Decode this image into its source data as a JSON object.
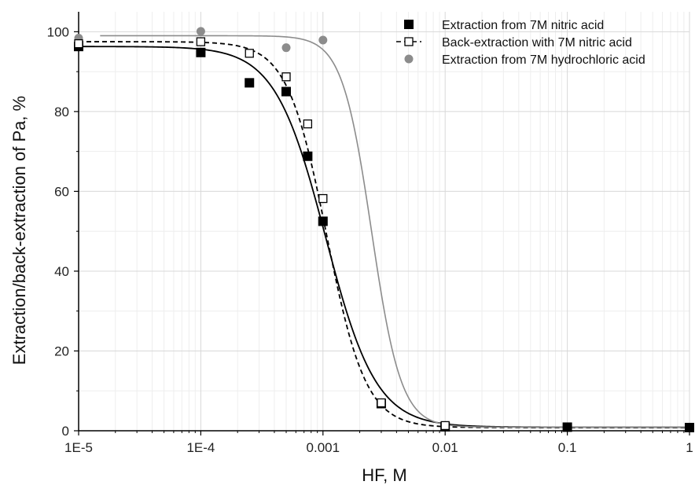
{
  "chart_data": {
    "type": "scatter",
    "xlabel": "HF, M",
    "ylabel": "Extraction/back-extraction of Pa, %",
    "x_scale": "log",
    "xlim": [
      1e-05,
      1
    ],
    "ylim": [
      0,
      105
    ],
    "x_ticks": [
      {
        "value": 1e-05,
        "label": "1E-5"
      },
      {
        "value": 0.0001,
        "label": "1E-4"
      },
      {
        "value": 0.001,
        "label": "0.001"
      },
      {
        "value": 0.01,
        "label": "0.01"
      },
      {
        "value": 0.1,
        "label": "0.1"
      },
      {
        "value": 1,
        "label": "1"
      }
    ],
    "y_ticks": [
      {
        "value": 0,
        "label": "0"
      },
      {
        "value": 20,
        "label": "20"
      },
      {
        "value": 40,
        "label": "40"
      },
      {
        "value": 60,
        "label": "60"
      },
      {
        "value": 80,
        "label": "80"
      },
      {
        "value": 100,
        "label": "100"
      }
    ],
    "grid": true,
    "legend_position": "top-right",
    "series": [
      {
        "name": "Extraction from 7M nitric acid",
        "marker": "filled-square",
        "line": "solid",
        "color": "#000000",
        "points": [
          {
            "x": 1e-05,
            "y": 96.3
          },
          {
            "x": 0.0001,
            "y": 94.8
          },
          {
            "x": 0.00025,
            "y": 87.2
          },
          {
            "x": 0.0005,
            "y": 85.0
          },
          {
            "x": 0.00075,
            "y": 68.8
          },
          {
            "x": 0.001,
            "y": 52.5
          },
          {
            "x": 0.003,
            "y": 6.8
          },
          {
            "x": 0.01,
            "y": 1.0
          },
          {
            "x": 0.1,
            "y": 0.9
          },
          {
            "x": 1,
            "y": 0.8
          }
        ]
      },
      {
        "name": "Back-extraction with 7M nitric acid",
        "marker": "open-square",
        "line": "dashed",
        "color": "#000000",
        "points": [
          {
            "x": 1e-05,
            "y": 97.0
          },
          {
            "x": 0.0001,
            "y": 97.5
          },
          {
            "x": 0.00025,
            "y": 94.6
          },
          {
            "x": 0.0005,
            "y": 88.7
          },
          {
            "x": 0.00075,
            "y": 76.9
          },
          {
            "x": 0.001,
            "y": 58.2
          },
          {
            "x": 0.003,
            "y": 7.0
          },
          {
            "x": 0.01,
            "y": 1.3
          }
        ]
      },
      {
        "name": "Extraction from 7M hydrochloric acid",
        "marker": "filled-circle",
        "line": "solid",
        "color": "#8c8c8c",
        "points": [
          {
            "x": 1e-05,
            "y": 98.4
          },
          {
            "x": 0.0001,
            "y": 100.1
          },
          {
            "x": 0.0005,
            "y": 96.0
          },
          {
            "x": 0.001,
            "y": 97.9
          }
        ]
      }
    ]
  }
}
